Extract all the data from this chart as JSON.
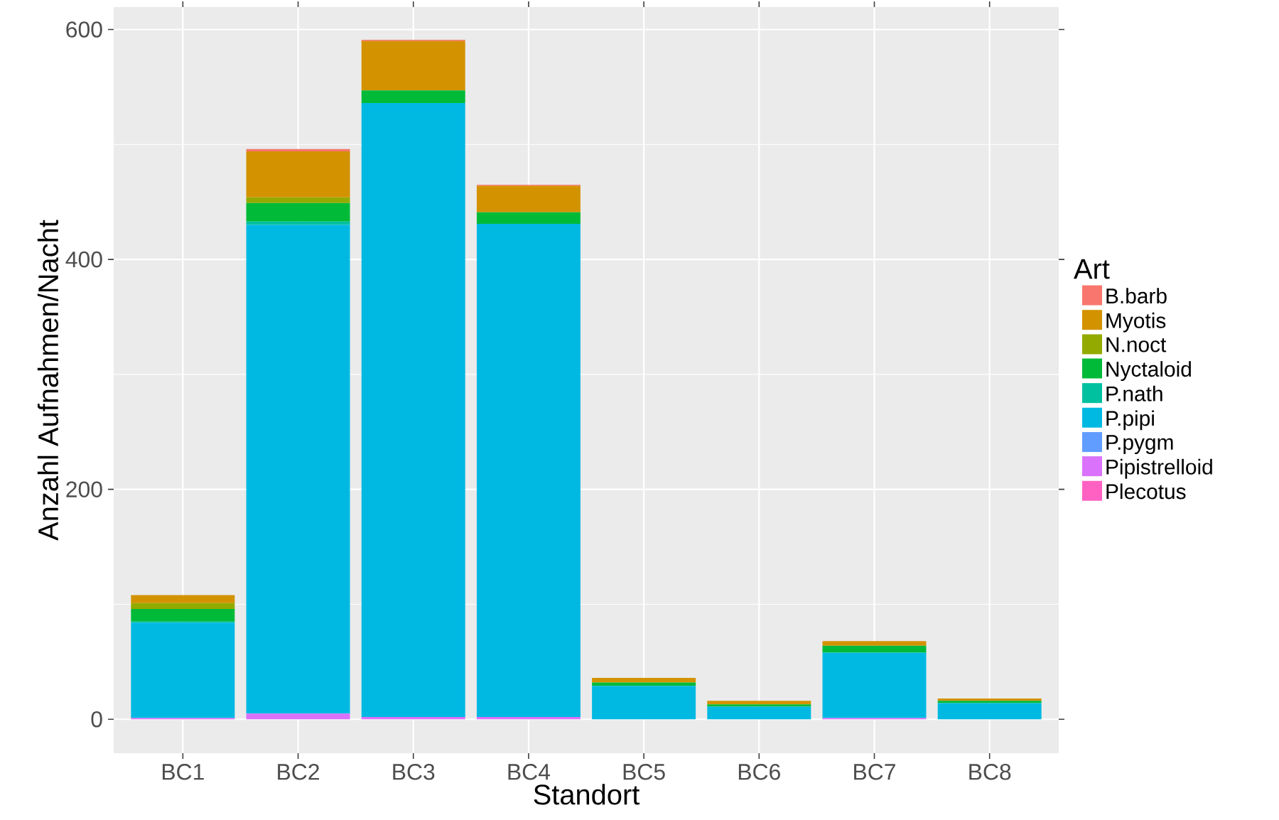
{
  "chart_data": {
    "type": "bar",
    "stacked": true,
    "xlabel": "Standort",
    "ylabel": "Anzahl Aufnahmen/Nacht",
    "legend_title": "Art",
    "legend": "right",
    "grid": true,
    "categories": [
      "BC1",
      "BC2",
      "BC3",
      "BC4",
      "BC5",
      "BC6",
      "BC7",
      "BC8"
    ],
    "ylim": [
      -29.5,
      619.5
    ],
    "yticks": [
      0,
      200,
      400,
      600
    ],
    "series": [
      {
        "name": "Plecotus",
        "color": "#ff61c3",
        "values": [
          0,
          0,
          0,
          0,
          0,
          0,
          0,
          0
        ]
      },
      {
        "name": "Pipistrelloid",
        "color": "#db72fb",
        "values": [
          1,
          5,
          2,
          2,
          0,
          0,
          1,
          0
        ]
      },
      {
        "name": "P.pygm",
        "color": "#619cff",
        "values": [
          0,
          0,
          0,
          0,
          0,
          0,
          0,
          0
        ]
      },
      {
        "name": "P.pipi",
        "color": "#00b9e3",
        "values": [
          83,
          425,
          534,
          429,
          29,
          11,
          57,
          14
        ]
      },
      {
        "name": "P.nath",
        "color": "#00c19f",
        "values": [
          1,
          3,
          0,
          0,
          0,
          0,
          0,
          0
        ]
      },
      {
        "name": "Nyctaloid",
        "color": "#00ba38",
        "values": [
          11,
          16,
          11,
          10,
          3,
          2,
          6,
          2
        ]
      },
      {
        "name": "N.noct",
        "color": "#93aa00",
        "values": [
          5,
          5,
          0,
          0,
          0,
          0,
          0,
          0
        ]
      },
      {
        "name": "Myotis",
        "color": "#d39200",
        "values": [
          7,
          40,
          43,
          23,
          4,
          3,
          4,
          2
        ]
      },
      {
        "name": "B.barb",
        "color": "#f8766d",
        "values": [
          0,
          2,
          1,
          1,
          0,
          0,
          0,
          0
        ]
      }
    ]
  }
}
